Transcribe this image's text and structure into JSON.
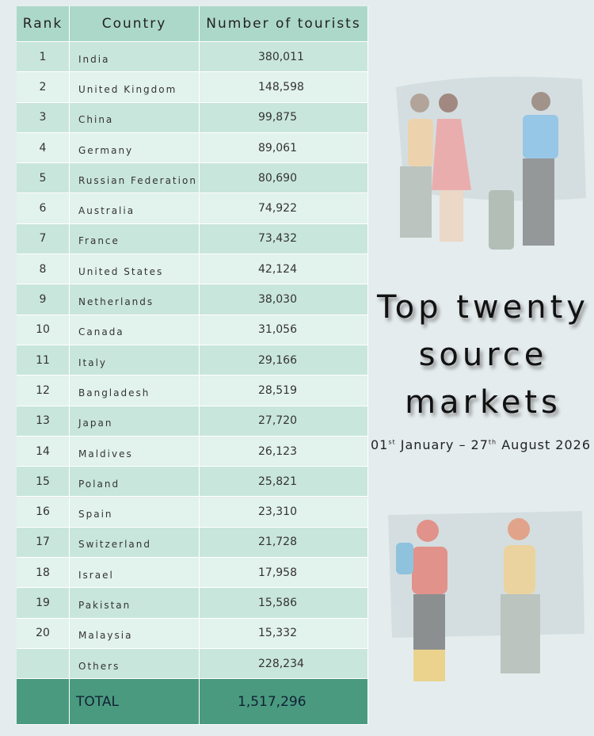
{
  "table": {
    "header": [
      "Rank",
      "Country",
      "Number of tourists"
    ],
    "rows": [
      [
        1,
        "India",
        "380,011"
      ],
      [
        2,
        "United Kingdom",
        "148,598"
      ],
      [
        3,
        "China",
        "99,875"
      ],
      [
        4,
        "Germany",
        "89,061"
      ],
      [
        5,
        "Russian Federation",
        "80,690"
      ],
      [
        6,
        "Australia",
        "74,922"
      ],
      [
        7,
        "France",
        "73,432"
      ],
      [
        8,
        "United States",
        "42,124"
      ],
      [
        9,
        "Netherlands",
        "38,030"
      ],
      [
        10,
        "Canada",
        "31,056"
      ],
      [
        11,
        "Italy",
        "29,166"
      ],
      [
        12,
        "Bangladesh",
        "28,519"
      ],
      [
        13,
        "Japan",
        "27,720"
      ],
      [
        14,
        "Maldives",
        "26,123"
      ],
      [
        15,
        "Poland",
        "25,821"
      ],
      [
        16,
        "Spain",
        "23,310"
      ],
      [
        17,
        "Switzerland",
        "21,728"
      ],
      [
        18,
        "Israel",
        "17,958"
      ],
      [
        19,
        "Pakistan",
        "15,586"
      ],
      [
        20,
        "Malaysia",
        "15,332"
      ]
    ],
    "others": {
      "label": "Others",
      "value": "228,234"
    },
    "total": {
      "label": "TOTAL",
      "value": "1,517,296"
    }
  },
  "title": [
    "Top twenty",
    "source",
    "markets"
  ],
  "period": [
    "01",
    "st",
    " January – 27",
    "th",
    " August 2026"
  ]
}
